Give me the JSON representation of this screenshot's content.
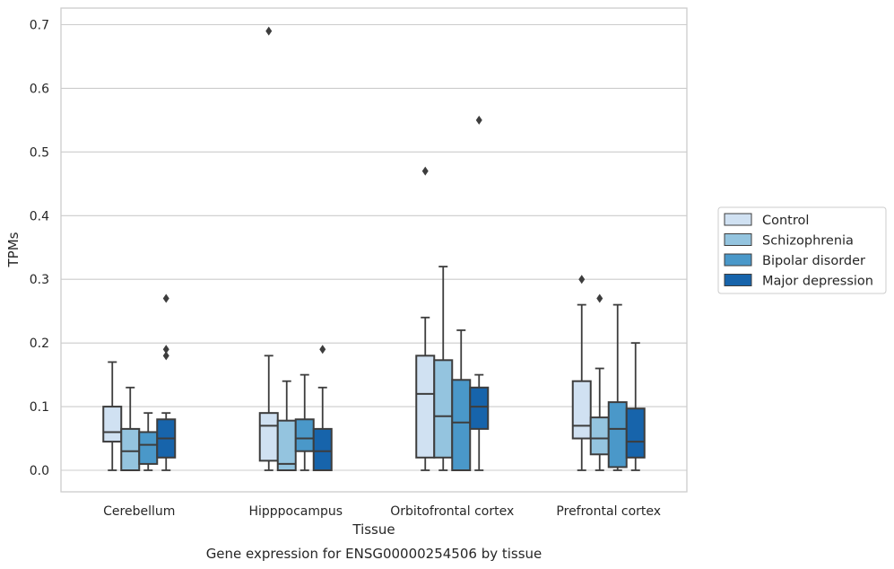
{
  "chart_data": {
    "type": "box",
    "title": "",
    "caption": "Gene expression for ENSG00000254506 by tissue",
    "xlabel": "Tissue",
    "ylabel": "TPMs",
    "ylim": [
      -0.033,
      0.727
    ],
    "yticks": [
      0.0,
      0.1,
      0.2,
      0.3,
      0.4,
      0.5,
      0.6,
      0.7
    ],
    "ytick_labels": [
      "0.0",
      "0.1",
      "0.2",
      "0.3",
      "0.4",
      "0.5",
      "0.6",
      "0.7"
    ],
    "grid": "horizontal",
    "legend_position": "right",
    "categories": [
      "Cerebellum",
      "Hipppocampus",
      "Orbitofrontal cortex",
      "Prefrontal cortex"
    ],
    "series": [
      {
        "name": "Control",
        "color": "#d0e1f2",
        "boxes": [
          {
            "whislo": 0.0,
            "q1": 0.045,
            "med": 0.06,
            "q3": 0.1,
            "whishi": 0.17,
            "fliers": []
          },
          {
            "whislo": 0.0,
            "q1": 0.015,
            "med": 0.07,
            "q3": 0.09,
            "whishi": 0.18,
            "fliers": [
              0.69
            ]
          },
          {
            "whislo": 0.0,
            "q1": 0.02,
            "med": 0.12,
            "q3": 0.18,
            "whishi": 0.24,
            "fliers": [
              0.47
            ]
          },
          {
            "whislo": 0.0,
            "q1": 0.05,
            "med": 0.07,
            "q3": 0.14,
            "whishi": 0.26,
            "fliers": [
              0.3
            ]
          }
        ]
      },
      {
        "name": "Schizophrenia",
        "color": "#94c4df",
        "boxes": [
          {
            "whislo": 0.0,
            "q1": 0.0,
            "med": 0.03,
            "q3": 0.065,
            "whishi": 0.13,
            "fliers": []
          },
          {
            "whislo": 0.0,
            "q1": 0.0,
            "med": 0.01,
            "q3": 0.078,
            "whishi": 0.14,
            "fliers": []
          },
          {
            "whislo": 0.0,
            "q1": 0.02,
            "med": 0.085,
            "q3": 0.173,
            "whishi": 0.32,
            "fliers": []
          },
          {
            "whislo": 0.0,
            "q1": 0.025,
            "med": 0.05,
            "q3": 0.083,
            "whishi": 0.16,
            "fliers": [
              0.27
            ]
          }
        ]
      },
      {
        "name": "Bipolar disorder",
        "color": "#4a98c9",
        "boxes": [
          {
            "whislo": 0.0,
            "q1": 0.01,
            "med": 0.04,
            "q3": 0.06,
            "whishi": 0.09,
            "fliers": []
          },
          {
            "whislo": 0.0,
            "q1": 0.03,
            "med": 0.05,
            "q3": 0.08,
            "whishi": 0.15,
            "fliers": []
          },
          {
            "whislo": 0.0,
            "q1": 0.0,
            "med": 0.075,
            "q3": 0.142,
            "whishi": 0.22,
            "fliers": []
          },
          {
            "whislo": 0.0,
            "q1": 0.005,
            "med": 0.065,
            "q3": 0.107,
            "whishi": 0.26,
            "fliers": []
          }
        ]
      },
      {
        "name": "Major depression",
        "color": "#1764ab",
        "boxes": [
          {
            "whislo": 0.0,
            "q1": 0.02,
            "med": 0.05,
            "q3": 0.08,
            "whishi": 0.09,
            "fliers": [
              0.27,
              0.19,
              0.18
            ]
          },
          {
            "whislo": 0.0,
            "q1": 0.0,
            "med": 0.03,
            "q3": 0.065,
            "whishi": 0.13,
            "fliers": [
              0.19
            ]
          },
          {
            "whislo": 0.0,
            "q1": 0.065,
            "med": 0.1,
            "q3": 0.13,
            "whishi": 0.15,
            "fliers": [
              0.55
            ]
          },
          {
            "whislo": 0.0,
            "q1": 0.02,
            "med": 0.045,
            "q3": 0.097,
            "whishi": 0.2,
            "fliers": []
          }
        ]
      }
    ]
  }
}
